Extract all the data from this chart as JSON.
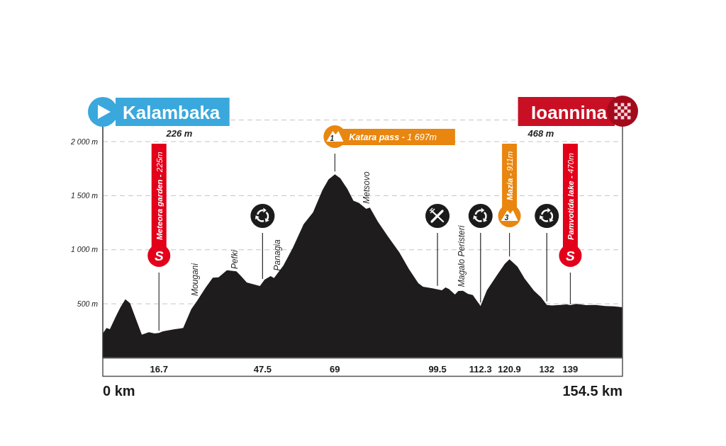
{
  "chart_data": {
    "type": "area",
    "x": [
      0,
      1.1,
      2.1,
      3.9,
      5.3,
      6.7,
      8.1,
      9.8,
      11.6,
      13.7,
      15.4,
      16.7,
      17.9,
      21.4,
      23.9,
      26.3,
      28.1,
      30.5,
      32.7,
      34.4,
      36.9,
      39.7,
      41.1,
      42.8,
      46.7,
      48.1,
      49.9,
      50.9,
      53.7,
      56.5,
      59.7,
      62.5,
      65.3,
      67.1,
      69,
      70.6,
      72.7,
      74.5,
      76.2,
      78.3,
      79.4,
      81.8,
      84.7,
      88.2,
      91,
      93.8,
      95.2,
      98,
      100.8,
      101.9,
      102.9,
      104.7,
      105.7,
      107.1,
      108.5,
      110,
      112.3,
      114.2,
      117,
      119.5,
      120.9,
      122,
      123.3,
      125.4,
      128.2,
      130.3,
      132,
      133.5,
      135.9,
      138,
      139,
      140.8,
      143.7,
      146.5,
      149.3,
      152.1,
      154.5
    ],
    "values": [
      226,
      276,
      265,
      385,
      472,
      542,
      505,
      363,
      215,
      237,
      226,
      230,
      245,
      265,
      276,
      450,
      531,
      647,
      741,
      745,
      810,
      800,
      756,
      697,
      664,
      723,
      756,
      738,
      854,
      1018,
      1236,
      1345,
      1552,
      1650,
      1697,
      1661,
      1563,
      1454,
      1432,
      1378,
      1389,
      1258,
      1127,
      974,
      821,
      690,
      658,
      643,
      625,
      651,
      636,
      586,
      618,
      620,
      592,
      581,
      480,
      625,
      756,
      870,
      911,
      880,
      843,
      734,
      620,
      560,
      490,
      485,
      490,
      494,
      488,
      499,
      488,
      490,
      479,
      476,
      468
    ],
    "color": "#1f1c1d",
    "xlim": [
      0,
      154.5
    ],
    "xticks": [
      16.7,
      47.5,
      69,
      99.5,
      112.3,
      120.9,
      132,
      139
    ],
    "ylim": [
      0,
      2200
    ],
    "yticks": [
      {
        "value": 500,
        "label": "500 m"
      },
      {
        "value": 1000,
        "label": "1 000 m"
      },
      {
        "value": 1500,
        "label": "1 500 m"
      },
      {
        "value": 2000,
        "label": "2 000 m"
      }
    ],
    "grid": "y",
    "ref_lines": [
      {
        "axis": "x",
        "value": 47.5,
        "color": "#333333"
      },
      {
        "axis": "x",
        "value": 99.5,
        "color": "#333333"
      },
      {
        "axis": "x",
        "value": 112.3,
        "color": "#333333"
      },
      {
        "axis": "x",
        "value": 132,
        "color": "#333333"
      }
    ],
    "annotations": [
      "Kalambaka",
      "226 m",
      "Ioannina",
      "468 m",
      "Meteora garden - 225m",
      {
        "text": "S",
        "x": 16.7,
        "y": 225
      },
      "Katara pass - 1 697m",
      "1",
      "Mazia - 911m",
      "3",
      "Pamvotida lake - 470m",
      {
        "text": "S",
        "x": 139,
        "y": 470
      },
      {
        "text": "Mougani",
        "x": 27.5,
        "y": 546
      },
      {
        "text": "Pefki",
        "x": 39.2,
        "y": 795
      },
      {
        "text": "Panagia",
        "x": 51.8,
        "y": 780
      },
      {
        "text": "Metsovo",
        "x": 78.5,
        "y": 1400
      },
      {
        "text": "Magalo Peristeri",
        "x": 106.6,
        "y": 630
      },
      "0 km",
      "154.5 km"
    ]
  }
}
